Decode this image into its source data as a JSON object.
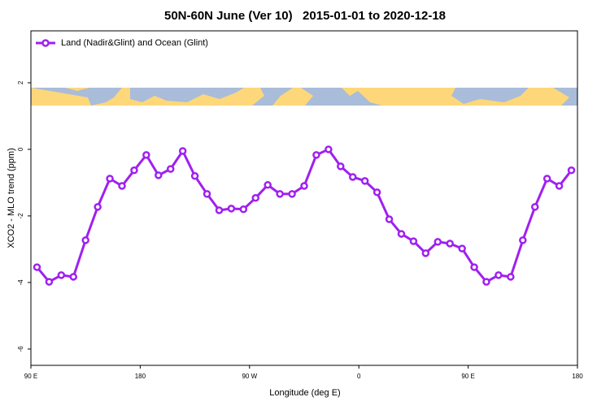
{
  "chart_data": {
    "type": "line",
    "title": "50N-60N June (Ver 10)   2015-01-01 to 2020-12-18",
    "xlabel": "Longitude (deg E)",
    "ylabel": "XCO2 - MLO trend (ppm)",
    "x": [
      95,
      105,
      115,
      125,
      135,
      145,
      155,
      165,
      175,
      185,
      195,
      205,
      215,
      225,
      235,
      245,
      255,
      265,
      275,
      285,
      295,
      305,
      315,
      325,
      335,
      345,
      355,
      365,
      375,
      385,
      395,
      405,
      415,
      425,
      435,
      445,
      455,
      465,
      475,
      485,
      495,
      505,
      515,
      525,
      535
    ],
    "series": [
      {
        "name": "Land (Nadir&Glint) and Ocean (Glint)",
        "color": "#a020f0",
        "values": [
          -3.54,
          -3.98,
          -3.78,
          -3.83,
          -2.73,
          -1.73,
          -0.88,
          -1.1,
          -0.63,
          -0.17,
          -0.78,
          -0.59,
          -0.05,
          -0.8,
          -1.34,
          -1.83,
          -1.78,
          -1.8,
          -1.46,
          -1.07,
          -1.34,
          -1.34,
          -1.1,
          -0.17,
          0.0,
          -0.51,
          -0.83,
          -0.95,
          -1.29,
          -2.1,
          -2.54,
          -2.76,
          -3.12,
          -2.78,
          -2.83,
          -2.98,
          -3.54,
          -3.98,
          -3.78,
          -3.83,
          -2.73,
          -1.73,
          -0.88,
          -1.1,
          -0.63
        ]
      }
    ],
    "xlim": [
      90,
      540
    ],
    "xticks": [
      {
        "value": 90,
        "label": "90 E"
      },
      180,
      {
        "value": 270,
        "label": "90 W"
      },
      {
        "value": 360,
        "label": "0"
      },
      {
        "value": 450,
        "label": "90 E"
      },
      {
        "value": 540,
        "label": "180"
      }
    ],
    "ylim": [
      -6.49,
      3.56
    ],
    "yticks": [
      -6,
      -4,
      -2,
      0,
      2
    ],
    "legend": "top-left"
  }
}
